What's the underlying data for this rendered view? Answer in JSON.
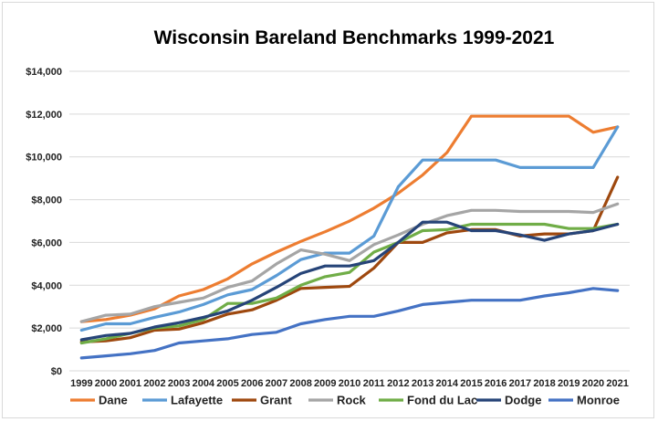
{
  "chart_data": {
    "type": "line",
    "title": "Wisconsin Bareland Benchmarks 1999-2021",
    "xlabel": "",
    "ylabel": "",
    "x": [
      "1999",
      "2000",
      "2001",
      "2002",
      "2003",
      "2004",
      "2005",
      "2006",
      "2007",
      "2008",
      "2009",
      "2010",
      "2011",
      "2012",
      "2013",
      "2014",
      "2015",
      "2016",
      "2017",
      "2018",
      "2019",
      "2020",
      "2021"
    ],
    "ylim": [
      0,
      14000
    ],
    "yticks": [
      0,
      2000,
      4000,
      6000,
      8000,
      10000,
      12000,
      14000
    ],
    "ytick_labels": [
      "$0",
      "$2,000",
      "$4,000",
      "$6,000",
      "$8,000",
      "$10,000",
      "$12,000",
      "$14,000"
    ],
    "grid": true,
    "legend_position": "bottom",
    "series": [
      {
        "name": "Dane",
        "color": "#ED7D31",
        "values": [
          2300,
          2400,
          2600,
          2900,
          3500,
          3800,
          4300,
          5000,
          5550,
          6050,
          6500,
          7000,
          7600,
          8300,
          9150,
          10200,
          11900,
          11900,
          11900,
          11900,
          11900,
          11150,
          11400
        ]
      },
      {
        "name": "Lafayette",
        "color": "#5B9BD5",
        "values": [
          1900,
          2200,
          2200,
          2500,
          2750,
          3100,
          3550,
          3800,
          4450,
          5200,
          5500,
          5500,
          6300,
          8600,
          9850,
          9850,
          9850,
          9850,
          9500,
          9500,
          9500,
          9500,
          11400
        ]
      },
      {
        "name": "Grant",
        "color": "#9E480E",
        "values": [
          1350,
          1400,
          1550,
          1900,
          1950,
          2250,
          2650,
          2850,
          3300,
          3850,
          3900,
          3950,
          4800,
          6000,
          6000,
          6450,
          6600,
          6600,
          6300,
          6400,
          6400,
          6550,
          9050
        ]
      },
      {
        "name": "Rock",
        "color": "#A5A5A5",
        "values": [
          2300,
          2600,
          2650,
          3000,
          3200,
          3400,
          3900,
          4200,
          5000,
          5650,
          5450,
          5150,
          5900,
          6350,
          6850,
          7250,
          7500,
          7500,
          7450,
          7450,
          7450,
          7400,
          7800
        ]
      },
      {
        "name": "Fond du Lac",
        "color": "#70AD47",
        "values": [
          1300,
          1500,
          1750,
          2000,
          2100,
          2400,
          3150,
          3150,
          3400,
          4000,
          4400,
          4600,
          5550,
          6000,
          6550,
          6600,
          6850,
          6850,
          6850,
          6850,
          6650,
          6650,
          6850
        ]
      },
      {
        "name": "Dodge",
        "color": "#264478",
        "values": [
          1450,
          1650,
          1750,
          2050,
          2250,
          2500,
          2800,
          3300,
          3900,
          4550,
          4900,
          4900,
          5150,
          6000,
          6950,
          6950,
          6550,
          6550,
          6350,
          6100,
          6400,
          6550,
          6850
        ]
      },
      {
        "name": "Monroe",
        "color": "#4472C4",
        "values": [
          600,
          700,
          800,
          950,
          1300,
          1400,
          1500,
          1700,
          1800,
          2200,
          2400,
          2550,
          2550,
          2800,
          3100,
          3200,
          3300,
          3300,
          3300,
          3500,
          3650,
          3850,
          3750
        ]
      }
    ]
  }
}
